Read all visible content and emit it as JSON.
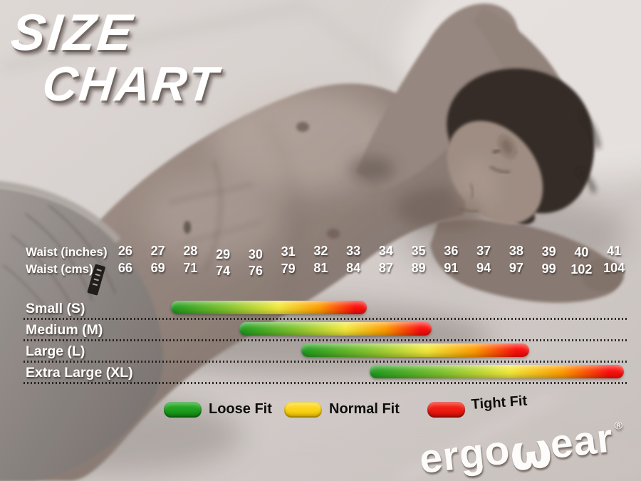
{
  "title": {
    "line1": "SIZE",
    "line2": "CHART"
  },
  "chart_data": {
    "type": "range-bar",
    "title": "Size Chart",
    "axis": {
      "inches_label": "Waist (inches)",
      "cms_label": "Waist (cms)",
      "inches": [
        26,
        27,
        28,
        29,
        30,
        31,
        32,
        33,
        34,
        35,
        36,
        37,
        38,
        39,
        40,
        41
      ],
      "cms": [
        66,
        69,
        71,
        74,
        76,
        79,
        81,
        84,
        87,
        89,
        91,
        94,
        97,
        99,
        102,
        104
      ]
    },
    "sizes": [
      {
        "label": "Small (S)",
        "range_inches": [
          27.4,
          33.4
        ]
      },
      {
        "label": "Medium (M)",
        "range_inches": [
          29.5,
          35.4
        ]
      },
      {
        "label": "Large (L)",
        "range_inches": [
          31.4,
          38.4
        ]
      },
      {
        "label": "Extra Large (XL)",
        "range_inches": [
          33.5,
          41.3
        ]
      }
    ],
    "bar_gradient": [
      "#1f9b1f",
      "#7fc32f",
      "#f2e93c",
      "#fe9b00",
      "#fb0f0c"
    ],
    "legend": [
      {
        "label": "Loose Fit",
        "color_top": "#2db32d",
        "color_bottom": "#108a10"
      },
      {
        "label": "Normal Fit",
        "color_top": "#ffe133",
        "color_bottom": "#f5c400"
      },
      {
        "label": "Tight Fit",
        "color_top": "#ff2a1e",
        "color_bottom": "#d90d05"
      }
    ],
    "layout_hints": {
      "grid": "dotted row separators",
      "legend_position": "bottom"
    }
  },
  "brand": {
    "word_start": "ergo",
    "word_w": "ω",
    "word_end": "ear",
    "registered": "®"
  }
}
